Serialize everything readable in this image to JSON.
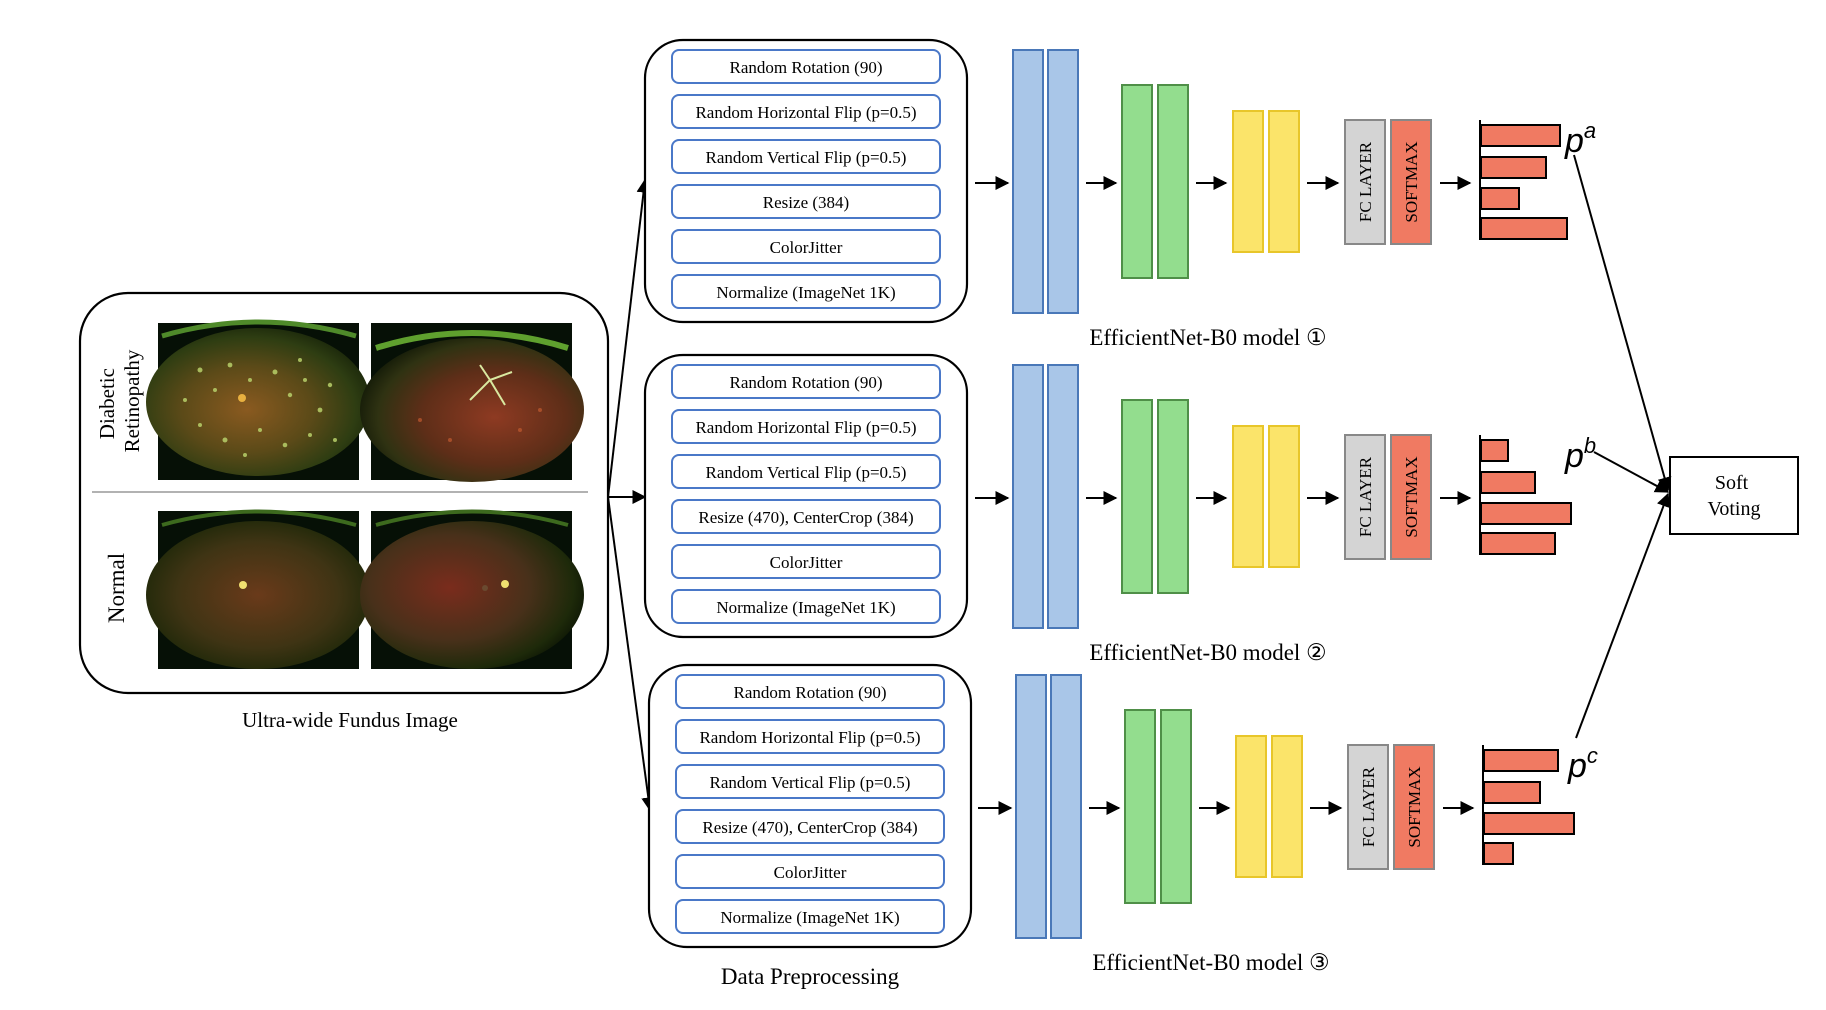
{
  "input_panel": {
    "row_labels": [
      {
        "lines": [
          "Diabetic",
          "Retinopathy"
        ]
      },
      {
        "lines": [
          "Normal"
        ]
      }
    ],
    "caption": "Ultra-wide Fundus Image"
  },
  "preprocessing": {
    "caption": "Data Preprocessing",
    "pipelines": [
      {
        "steps": [
          "Random Rotation (90)",
          "Random Horizontal Flip (p=0.5)",
          "Random Vertical Flip (p=0.5)",
          "Resize (384)",
          "ColorJitter",
          "Normalize (ImageNet 1K)"
        ]
      },
      {
        "steps": [
          "Random Rotation (90)",
          "Random Horizontal Flip (p=0.5)",
          "Random Vertical Flip (p=0.5)",
          "Resize (470), CenterCrop (384)",
          "ColorJitter",
          "Normalize (ImageNet 1K)"
        ]
      },
      {
        "steps": [
          "Random Rotation (90)",
          "Random Horizontal Flip (p=0.5)",
          "Random Vertical Flip (p=0.5)",
          "Resize (470), CenterCrop (384)",
          "ColorJitter",
          "Normalize (ImageNet 1K)"
        ]
      }
    ]
  },
  "models": [
    {
      "label": "EfficientNet-B0 model ①",
      "fc_label": "FC LAYER",
      "softmax_label": "SOFTMAX",
      "prob_symbol": "p",
      "prob_superscript": "a",
      "bar_lengths": [
        0.88,
        0.72,
        0.42,
        0.95
      ]
    },
    {
      "label": "EfficientNet-B0 model ②",
      "fc_label": "FC LAYER",
      "softmax_label": "SOFTMAX",
      "prob_symbol": "p",
      "prob_superscript": "b",
      "bar_lengths": [
        0.3,
        0.6,
        1.0,
        0.82
      ]
    },
    {
      "label": "EfficientNet-B0 model ③",
      "fc_label": "FC LAYER",
      "softmax_label": "SOFTMAX",
      "prob_symbol": "p",
      "prob_superscript": "c",
      "bar_lengths": [
        0.82,
        0.62,
        1.0,
        0.32
      ]
    }
  ],
  "voting": {
    "lines": [
      "Soft",
      "Voting"
    ]
  },
  "colors": {
    "block_blue": "#a9c6e8",
    "block_blue_stroke": "#4a78b8",
    "block_green": "#93dd8e",
    "block_green_stroke": "#4f8f48",
    "block_yellow": "#fbe46a",
    "block_yellow_stroke": "#e8c62a",
    "fc_fill": "#d4d4d4",
    "fc_stroke": "#888888",
    "softmax_fill": "#f07a62",
    "softmax_stroke": "#888888",
    "bar_fill": "#f07a62",
    "bar_stroke": "#000000",
    "step_stroke": "#4a78c8"
  }
}
